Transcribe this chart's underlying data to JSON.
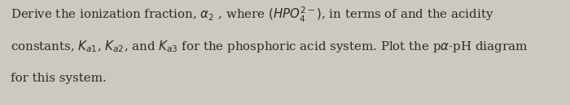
{
  "background_color": "#cdc9c0",
  "text_color": "#2a2a2a",
  "font_size_main": 10.8,
  "font_size_note": 10.5,
  "figsize": [
    7.0,
    1.3
  ],
  "dpi": 100
}
